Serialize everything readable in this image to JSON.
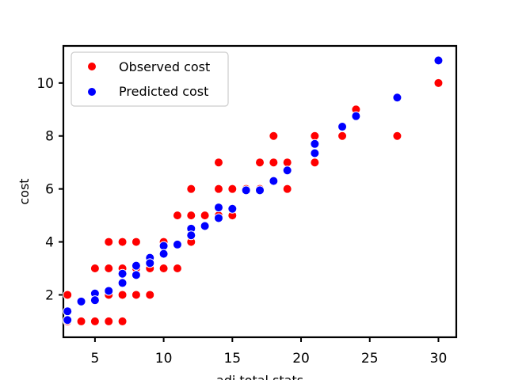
{
  "chart_data": {
    "type": "scatter",
    "title": "",
    "xlabel": "adj total stats",
    "ylabel": "cost",
    "xlim": [
      2.7,
      31.3
    ],
    "ylim": [
      0.4,
      11.4
    ],
    "xticks": [
      5,
      10,
      15,
      20,
      25,
      30
    ],
    "yticks": [
      2,
      4,
      6,
      8,
      10
    ],
    "grid": false,
    "legend_position": "top-left",
    "colors": {
      "observed": "#ff0000",
      "predicted": "#0000ff",
      "marker_edge": "#ffffff"
    },
    "series": [
      {
        "name": "Observed cost",
        "points": [
          [
            3,
            2
          ],
          [
            3,
            1
          ],
          [
            4,
            1
          ],
          [
            5,
            3
          ],
          [
            5,
            1
          ],
          [
            5,
            2
          ],
          [
            6,
            4
          ],
          [
            6,
            3
          ],
          [
            6,
            2
          ],
          [
            6,
            1
          ],
          [
            7,
            4
          ],
          [
            7,
            3
          ],
          [
            7,
            2
          ],
          [
            7,
            1
          ],
          [
            8,
            4
          ],
          [
            8,
            3
          ],
          [
            8,
            2
          ],
          [
            9,
            3
          ],
          [
            9,
            2
          ],
          [
            10,
            4
          ],
          [
            10,
            3
          ],
          [
            11,
            5
          ],
          [
            11,
            3
          ],
          [
            12,
            6
          ],
          [
            12,
            5
          ],
          [
            12,
            4
          ],
          [
            13,
            5
          ],
          [
            14,
            7
          ],
          [
            14,
            6
          ],
          [
            14,
            5
          ],
          [
            15,
            6
          ],
          [
            15,
            5
          ],
          [
            16,
            6
          ],
          [
            17,
            7
          ],
          [
            17,
            6
          ],
          [
            18,
            8
          ],
          [
            18,
            7
          ],
          [
            19,
            7
          ],
          [
            19,
            6
          ],
          [
            21,
            8
          ],
          [
            21,
            7
          ],
          [
            23,
            8
          ],
          [
            24,
            9
          ],
          [
            27,
            8
          ],
          [
            30,
            10
          ]
        ]
      },
      {
        "name": "Predicted cost",
        "points": [
          [
            3,
            1.38
          ],
          [
            3,
            1.05
          ],
          [
            4,
            1.75
          ],
          [
            5,
            2.05
          ],
          [
            5,
            1.8
          ],
          [
            6,
            2.15
          ],
          [
            7,
            2.8
          ],
          [
            7,
            2.45
          ],
          [
            8,
            3.1
          ],
          [
            8,
            2.75
          ],
          [
            9,
            3.4
          ],
          [
            9,
            3.2
          ],
          [
            10,
            3.85
          ],
          [
            10,
            3.55
          ],
          [
            11,
            3.9
          ],
          [
            12,
            4.5
          ],
          [
            12,
            4.25
          ],
          [
            13,
            4.6
          ],
          [
            14,
            5.3
          ],
          [
            14,
            4.9
          ],
          [
            15,
            5.25
          ],
          [
            16,
            5.95
          ],
          [
            17,
            5.95
          ],
          [
            18,
            6.3
          ],
          [
            19,
            6.7
          ],
          [
            21,
            7.7
          ],
          [
            21,
            7.35
          ],
          [
            23,
            8.35
          ],
          [
            24,
            8.75
          ],
          [
            27,
            9.45
          ],
          [
            30,
            10.85
          ]
        ]
      }
    ]
  }
}
